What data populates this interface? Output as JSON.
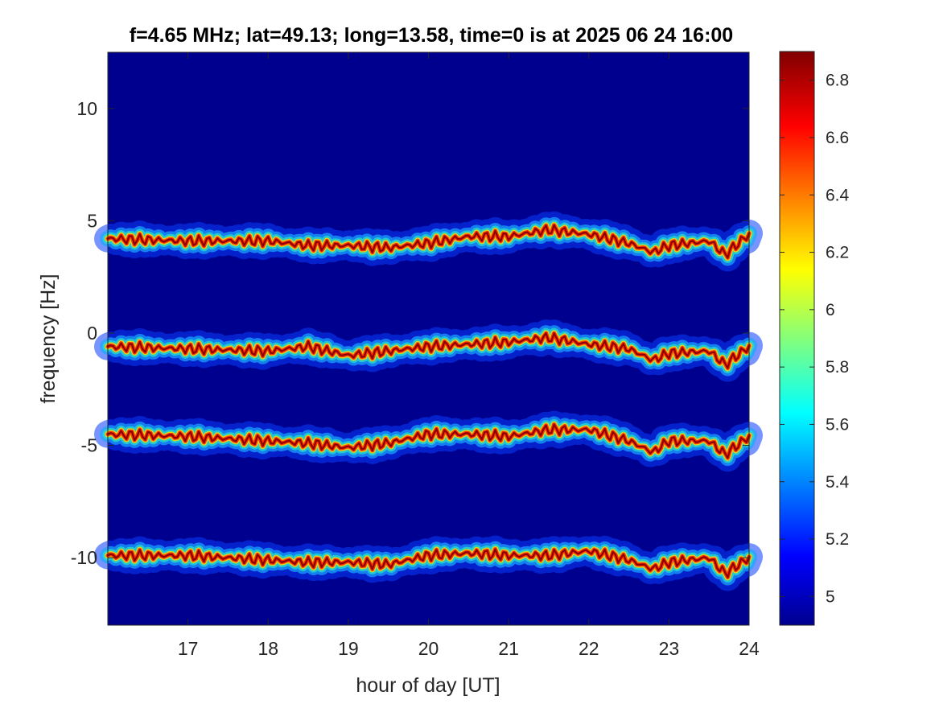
{
  "chart_data": {
    "type": "heatmap",
    "title": "f=4.65 MHz;  lat=49.13; long=13.58, time=0 is at 2025 06 24 16:00",
    "xlabel": "hour of day [UT]",
    "ylabel": "frequency [Hz]",
    "xlim": [
      16,
      24
    ],
    "ylim": [
      -13,
      12.5
    ],
    "xticks": [
      17,
      18,
      19,
      20,
      21,
      22,
      23,
      24
    ],
    "yticks": [
      -10,
      -5,
      0,
      5,
      10
    ],
    "color_range": [
      4.9,
      6.9
    ],
    "colorbar_ticks": [
      5,
      5.2,
      5.4,
      5.6,
      5.8,
      6,
      6.2,
      6.4,
      6.6,
      6.8
    ],
    "colormap": "jet",
    "background_color": "#00008f",
    "traces": [
      {
        "hours": [
          16,
          17,
          18,
          18.5,
          19,
          19.5,
          20,
          20.5,
          21,
          21.5,
          22,
          22.5,
          22.8,
          23,
          23.5,
          23.7,
          24
        ],
        "freq": [
          4.2,
          4.1,
          4.1,
          3.9,
          3.9,
          3.8,
          4.0,
          4.3,
          4.3,
          4.6,
          4.4,
          4.0,
          3.6,
          3.9,
          4.1,
          3.5,
          4.4
        ]
      },
      {
        "hours": [
          16,
          17,
          18,
          18.5,
          19,
          19.5,
          20,
          20.5,
          21,
          21.5,
          22,
          22.5,
          22.8,
          23,
          23.5,
          23.7,
          24
        ],
        "freq": [
          -0.6,
          -0.7,
          -0.8,
          -0.6,
          -1.0,
          -0.8,
          -0.6,
          -0.5,
          -0.4,
          -0.2,
          -0.5,
          -0.7,
          -1.2,
          -0.9,
          -0.8,
          -1.4,
          -0.6
        ]
      },
      {
        "hours": [
          16,
          17,
          18,
          18.5,
          19,
          19.5,
          20,
          20.5,
          21,
          21.5,
          22,
          22.5,
          22.8,
          23,
          23.5,
          23.7,
          24
        ],
        "freq": [
          -4.5,
          -4.6,
          -4.8,
          -4.9,
          -5.1,
          -4.9,
          -4.5,
          -4.5,
          -4.6,
          -4.3,
          -4.3,
          -4.8,
          -5.3,
          -4.8,
          -4.8,
          -5.4,
          -4.6
        ]
      },
      {
        "hours": [
          16,
          17,
          18,
          18.5,
          19,
          19.5,
          20,
          20.5,
          21,
          21.5,
          22,
          22.5,
          22.8,
          23,
          23.5,
          23.7,
          24
        ],
        "freq": [
          -9.9,
          -9.9,
          -10.1,
          -10.2,
          -10.2,
          -10.3,
          -9.9,
          -9.8,
          -9.9,
          -9.9,
          -9.7,
          -10.1,
          -10.5,
          -10.2,
          -10.0,
          -10.7,
          -10.0
        ]
      }
    ]
  }
}
